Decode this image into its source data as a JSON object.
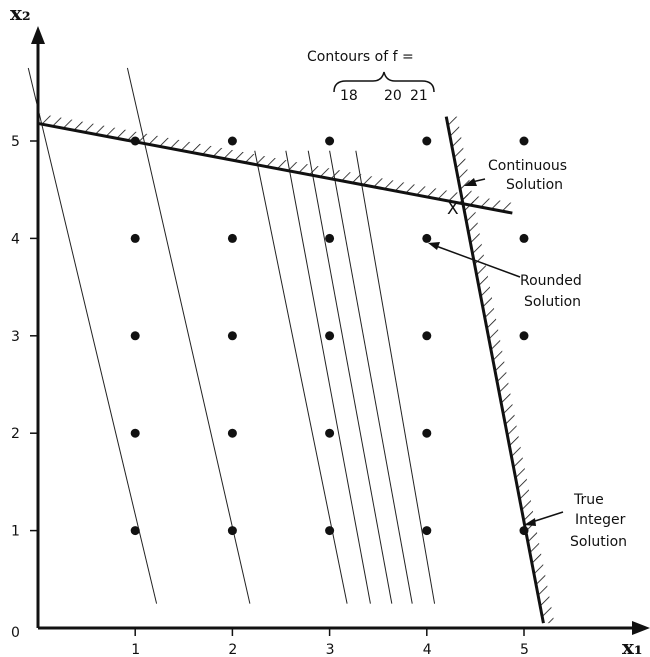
{
  "figure": {
    "x_axis_label": "x₁",
    "y_axis_label": "x₂",
    "origin_label": "0",
    "x_ticks": [
      "1",
      "2",
      "3",
      "4",
      "5"
    ],
    "y_ticks": [
      "1",
      "2",
      "3",
      "4",
      "5"
    ],
    "contour_title": "Contours of f =",
    "contour_values": [
      "18",
      "20",
      "21"
    ],
    "continuous_solution_label": [
      "Continuous",
      "Solution"
    ],
    "rounded_solution_label": [
      "Rounded",
      "Solution"
    ],
    "true_solution_label": [
      "True",
      "Integer",
      "Solution"
    ],
    "continuous_marker": "X"
  },
  "chart_data": {
    "type": "scatter",
    "xlim": [
      0,
      5.35
    ],
    "ylim": [
      0,
      5.95
    ],
    "lattice_points": [
      [
        1,
        1
      ],
      [
        1,
        2
      ],
      [
        1,
        3
      ],
      [
        1,
        4
      ],
      [
        1,
        5
      ],
      [
        2,
        1
      ],
      [
        2,
        2
      ],
      [
        2,
        3
      ],
      [
        2,
        4
      ],
      [
        2,
        5
      ],
      [
        3,
        1
      ],
      [
        3,
        2
      ],
      [
        3,
        3
      ],
      [
        3,
        4
      ],
      [
        3,
        5
      ],
      [
        4,
        1
      ],
      [
        4,
        2
      ],
      [
        4,
        3
      ],
      [
        4,
        4
      ],
      [
        4,
        5
      ],
      [
        5,
        1
      ],
      [
        5,
        3
      ],
      [
        5,
        4
      ],
      [
        5,
        5
      ]
    ],
    "constraint_1": {
      "from": [
        -0.9,
        5.35
      ],
      "to": [
        4.88,
        4.26
      ]
    },
    "constraint_2": {
      "from": [
        4.2,
        5.25
      ],
      "to": [
        5.2,
        0.05
      ]
    },
    "contours": [
      {
        "from": [
          -0.1,
          5.75
        ],
        "to": [
          1.22,
          0.25
        ]
      },
      {
        "from": [
          0.92,
          5.75
        ],
        "to": [
          2.18,
          0.25
        ]
      },
      {
        "from": [
          2.23,
          4.9
        ],
        "to": [
          3.18,
          0.25
        ]
      },
      {
        "from": [
          2.55,
          4.9
        ],
        "to": [
          3.42,
          0.25
        ]
      },
      {
        "from": [
          2.78,
          4.9
        ],
        "to": [
          3.64,
          0.25
        ]
      },
      {
        "from": [
          3.0,
          4.9
        ],
        "to": [
          3.85,
          0.25
        ]
      },
      {
        "from": [
          3.27,
          4.9
        ],
        "to": [
          4.08,
          0.25
        ]
      }
    ],
    "continuous_solution": [
      4.3,
      4.4
    ],
    "rounded_solution": [
      4,
      4
    ],
    "true_integer_solution": [
      5,
      1
    ]
  }
}
